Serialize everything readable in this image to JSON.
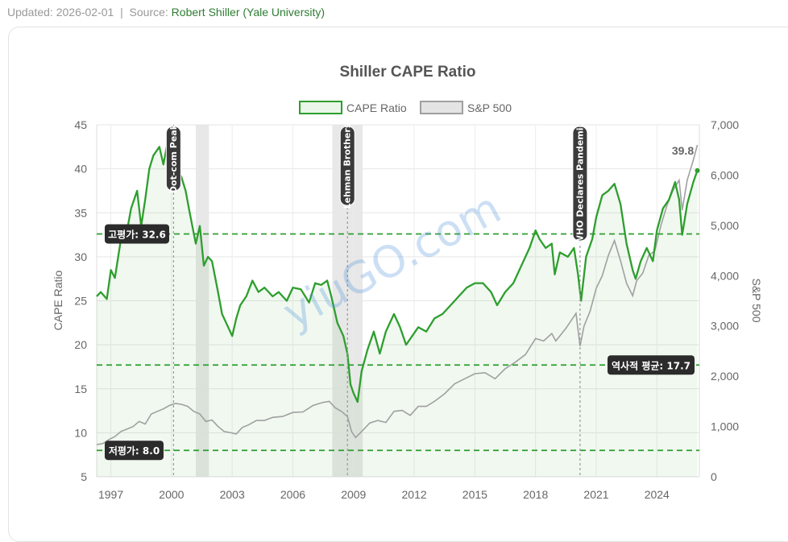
{
  "header": {
    "updated_text": "Updated: 2026-02-01",
    "separator": "|",
    "source_label": "Source:",
    "source_name": "Robert Shiller (Yale University)"
  },
  "watermark": "yiuGO.com",
  "chart_data": {
    "type": "line",
    "title": "Shiller CAPE Ratio",
    "legend": {
      "placement": "top-center",
      "entries": [
        "CAPE Ratio",
        "S&P 500"
      ]
    },
    "ylabel": "CAPE Ratio",
    "y2label": "S&P 500",
    "ylim": [
      5,
      45
    ],
    "y2lim": [
      0,
      7000
    ],
    "xlim": [
      1996.3,
      2026.1
    ],
    "x_ticks": [
      "1997",
      "2000",
      "2003",
      "2006",
      "2009",
      "2012",
      "2015",
      "2018",
      "2021",
      "2024"
    ],
    "y_ticks": [
      "45",
      "40",
      "35",
      "30",
      "25",
      "20",
      "15",
      "10",
      "5"
    ],
    "y2_ticks": [
      "7,000",
      "6,000",
      "5,000",
      "4,000",
      "3,000",
      "2,000",
      "1,000",
      "0"
    ],
    "grid": true,
    "colors": {
      "cape": "#2e9e2e",
      "sp500": "#a0a0a0",
      "reference": "#2e9e2e",
      "shade": "#d9d9d9",
      "label_bg": "#2b2b2b"
    },
    "series": [
      {
        "name": "CAPE Ratio",
        "axis": "left",
        "x": [
          1996.3,
          1996.5,
          1996.8,
          1997.0,
          1997.2,
          1997.5,
          1997.8,
          1998.0,
          1998.3,
          1998.5,
          1998.7,
          1998.9,
          1999.1,
          1999.4,
          1999.6,
          1999.8,
          2000.0,
          2000.2,
          2000.5,
          2000.7,
          2000.9,
          2001.2,
          2001.4,
          2001.6,
          2001.8,
          2002.0,
          2002.3,
          2002.5,
          2002.8,
          2003.0,
          2003.2,
          2003.4,
          2003.7,
          2004.0,
          2004.3,
          2004.6,
          2005.0,
          2005.3,
          2005.7,
          2006.0,
          2006.4,
          2006.8,
          2007.1,
          2007.4,
          2007.7,
          2007.9,
          2008.2,
          2008.5,
          2008.7,
          2008.85,
          2009.0,
          2009.2,
          2009.4,
          2009.7,
          2010.0,
          2010.3,
          2010.6,
          2011.0,
          2011.3,
          2011.6,
          2011.9,
          2012.2,
          2012.6,
          2013.0,
          2013.4,
          2013.8,
          2014.2,
          2014.6,
          2015.0,
          2015.4,
          2015.8,
          2016.1,
          2016.5,
          2016.9,
          2017.3,
          2017.7,
          2018.0,
          2018.2,
          2018.5,
          2018.8,
          2018.95,
          2019.2,
          2019.6,
          2019.9,
          2020.1,
          2020.25,
          2020.5,
          2020.8,
          2021.0,
          2021.3,
          2021.6,
          2021.9,
          2022.2,
          2022.5,
          2022.8,
          2022.95,
          2023.2,
          2023.5,
          2023.8,
          2024.0,
          2024.3,
          2024.6,
          2024.9,
          2025.1,
          2025.25,
          2025.5,
          2025.8,
          2026.0
        ],
        "values": [
          25.5,
          26.0,
          25.2,
          28.5,
          27.6,
          32.0,
          33.0,
          35.5,
          37.5,
          33.5,
          36.5,
          40.0,
          41.5,
          42.5,
          40.5,
          43.0,
          42.0,
          40.5,
          39.0,
          37.5,
          35.0,
          31.5,
          33.5,
          29.0,
          30.0,
          29.5,
          26.0,
          23.5,
          22.0,
          21.0,
          23.0,
          24.5,
          25.5,
          27.3,
          26.0,
          26.5,
          25.5,
          26.0,
          25.0,
          26.5,
          26.3,
          24.8,
          27.0,
          26.8,
          27.3,
          25.5,
          22.5,
          21.0,
          19.0,
          15.5,
          14.5,
          13.5,
          17.0,
          19.5,
          21.5,
          19.0,
          21.5,
          23.5,
          22.0,
          20.0,
          21.0,
          22.0,
          21.5,
          23.0,
          23.5,
          24.5,
          25.5,
          26.5,
          27.0,
          27.0,
          26.0,
          24.5,
          26.0,
          27.0,
          29.0,
          31.0,
          33.0,
          32.0,
          31.0,
          31.5,
          28.0,
          30.5,
          30.0,
          31.0,
          28.0,
          25.0,
          30.0,
          32.0,
          34.5,
          37.0,
          37.5,
          38.3,
          36.0,
          31.5,
          28.5,
          27.5,
          29.5,
          31.0,
          29.5,
          33.0,
          35.5,
          36.5,
          38.5,
          36.5,
          32.5,
          36.0,
          38.5,
          39.8
        ]
      },
      {
        "name": "S&P 500",
        "axis": "right",
        "x": [
          1996.3,
          1996.6,
          1996.9,
          1997.2,
          1997.5,
          1997.8,
          1998.1,
          1998.4,
          1998.7,
          1999.0,
          1999.3,
          1999.6,
          1999.9,
          2000.2,
          2000.5,
          2000.8,
          2001.1,
          2001.4,
          2001.7,
          2002.0,
          2002.3,
          2002.6,
          2002.9,
          2003.2,
          2003.5,
          2003.8,
          2004.2,
          2004.6,
          2005.0,
          2005.5,
          2006.0,
          2006.5,
          2007.0,
          2007.5,
          2007.8,
          2008.1,
          2008.4,
          2008.7,
          2008.9,
          2009.1,
          2009.4,
          2009.8,
          2010.2,
          2010.6,
          2011.0,
          2011.4,
          2011.8,
          2012.2,
          2012.6,
          2013.0,
          2013.5,
          2014.0,
          2014.5,
          2015.0,
          2015.5,
          2016.0,
          2016.5,
          2017.0,
          2017.5,
          2018.0,
          2018.4,
          2018.8,
          2019.0,
          2019.5,
          2020.0,
          2020.2,
          2020.4,
          2020.7,
          2021.0,
          2021.3,
          2021.6,
          2021.9,
          2022.2,
          2022.5,
          2022.8,
          2023.0,
          2023.3,
          2023.6,
          2023.9,
          2024.2,
          2024.5,
          2024.8,
          2025.1,
          2025.25,
          2025.5,
          2025.8,
          2026.0
        ],
        "values": [
          640,
          660,
          740,
          800,
          900,
          950,
          1000,
          1100,
          1050,
          1250,
          1300,
          1350,
          1420,
          1460,
          1440,
          1400,
          1300,
          1250,
          1100,
          1130,
          1000,
          900,
          880,
          850,
          980,
          1030,
          1120,
          1120,
          1180,
          1200,
          1280,
          1290,
          1420,
          1480,
          1500,
          1370,
          1300,
          1200,
          900,
          780,
          900,
          1070,
          1120,
          1080,
          1300,
          1320,
          1220,
          1400,
          1400,
          1500,
          1650,
          1850,
          1950,
          2050,
          2070,
          1950,
          2150,
          2280,
          2430,
          2750,
          2700,
          2850,
          2700,
          2950,
          3250,
          2600,
          3000,
          3300,
          3750,
          4000,
          4400,
          4700,
          4300,
          3850,
          3600,
          3900,
          4050,
          4400,
          4500,
          5000,
          5400,
          5700,
          5900,
          5300,
          5900,
          6300,
          6600
        ]
      }
    ],
    "reference_lines": [
      {
        "label": "고평가: 32.6",
        "value": 32.6
      },
      {
        "label": "역사적 평균: 17.7",
        "value": 17.7
      },
      {
        "label": "저평가: 8.0",
        "value": 8.0
      }
    ],
    "events": [
      {
        "label": "Dot-com Peak",
        "x": 2000.1
      },
      {
        "label": "Lehman Brothers",
        "x": 2008.7
      },
      {
        "label": "WHO Declares Pandemic",
        "x": 2020.2
      }
    ],
    "recessions": [
      {
        "start": 2001.2,
        "end": 2001.85
      },
      {
        "start": 2007.95,
        "end": 2009.45
      }
    ],
    "last_value_label": "39.8"
  }
}
